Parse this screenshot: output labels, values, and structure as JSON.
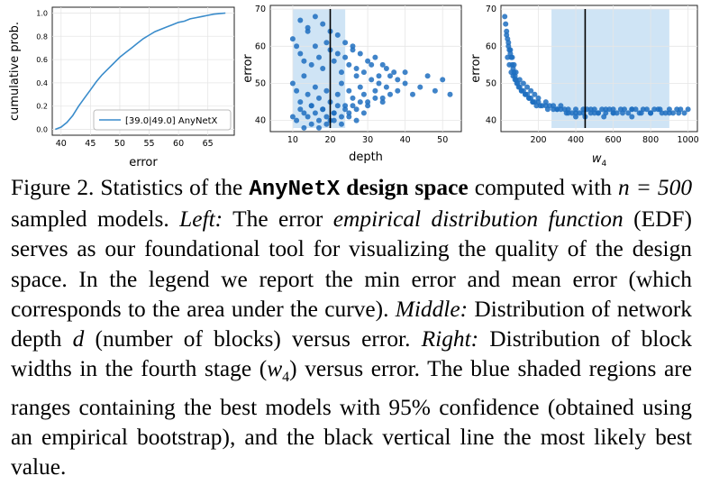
{
  "chart_data": [
    {
      "type": "line",
      "xlabel": "error",
      "ylabel": "cumulative prob.",
      "xlim": [
        38.5,
        69.5
      ],
      "ylim": [
        -0.05,
        1.05
      ],
      "xticks": [
        "40",
        "45",
        "50",
        "55",
        "60",
        "65"
      ],
      "yticks": [
        "0.0",
        "0.2",
        "0.4",
        "0.6",
        "0.8",
        "1.0"
      ],
      "legend": "[39.0|49.0] AnyNetX",
      "legend_position": "lower-right",
      "grid": true,
      "series": [
        {
          "name": "[39.0|49.0] AnyNetX",
          "color": "#3a8ccb",
          "x": [
            39.0,
            40.0,
            41.0,
            42.0,
            43.0,
            44.0,
            45.0,
            46.0,
            47.0,
            48.0,
            49.0,
            50.0,
            51.0,
            52.0,
            53.0,
            54.0,
            55.0,
            56.0,
            57.0,
            58.0,
            59.0,
            60.0,
            61.0,
            62.0,
            63.0,
            64.0,
            65.0,
            66.0,
            67.0,
            68.0
          ],
          "y": [
            0.0,
            0.02,
            0.06,
            0.12,
            0.2,
            0.27,
            0.34,
            0.41,
            0.47,
            0.52,
            0.57,
            0.62,
            0.66,
            0.7,
            0.74,
            0.78,
            0.81,
            0.84,
            0.86,
            0.88,
            0.9,
            0.92,
            0.93,
            0.95,
            0.96,
            0.97,
            0.98,
            0.99,
            0.995,
            1.0
          ]
        }
      ]
    },
    {
      "type": "scatter",
      "xlabel": "depth",
      "ylabel": "error",
      "xlim": [
        4,
        55
      ],
      "ylim": [
        37,
        71
      ],
      "xticks": [
        "10",
        "20",
        "30",
        "40",
        "50"
      ],
      "yticks": [
        "40",
        "50",
        "60",
        "70"
      ],
      "grid": true,
      "shaded_range": [
        10,
        24
      ],
      "best_value": 20,
      "color": "#1f6fbf",
      "shade_color": "#cfe4f5",
      "points": {
        "x": [
          10,
          11,
          12,
          13,
          14,
          15,
          16,
          17,
          18,
          19,
          20,
          21,
          22,
          23,
          24,
          25,
          26,
          27,
          28,
          29,
          30,
          31,
          32,
          33,
          34,
          35,
          36,
          37,
          38,
          40,
          42,
          44,
          46,
          48,
          50,
          52,
          10,
          11,
          12,
          13,
          14,
          15,
          16,
          17,
          18,
          19,
          20,
          21,
          22,
          23,
          24,
          25,
          26,
          27,
          28,
          29,
          30,
          31,
          32,
          33,
          34,
          35,
          36,
          38,
          40,
          10,
          11,
          12,
          13,
          14,
          15,
          16,
          17,
          18,
          19,
          20,
          21,
          22,
          23,
          24,
          25,
          26,
          27,
          28,
          30,
          32,
          34,
          12,
          14,
          16,
          18,
          20,
          22,
          24,
          26,
          13,
          15,
          17,
          19,
          21,
          23,
          25,
          27,
          29
        ],
        "y": [
          50,
          48,
          45,
          52,
          47,
          44,
          49,
          46,
          43,
          48,
          45,
          42,
          47,
          50,
          44,
          48,
          46,
          52,
          49,
          47,
          45,
          51,
          48,
          50,
          46,
          49,
          47,
          53,
          48,
          50,
          47,
          49,
          52,
          48,
          51,
          47,
          62,
          60,
          58,
          56,
          64,
          55,
          60,
          57,
          54,
          61,
          59,
          56,
          58,
          53,
          57,
          55,
          59,
          54,
          58,
          53,
          56,
          55,
          57,
          52,
          55,
          54,
          52,
          51,
          53,
          41,
          40,
          43,
          42,
          41,
          44,
          42,
          40,
          43,
          41,
          40,
          42,
          44,
          41,
          43,
          42,
          44,
          43,
          45,
          44,
          46,
          45,
          67,
          65,
          68,
          66,
          64,
          63,
          61,
          60,
          38,
          39,
          38,
          39,
          40,
          39,
          41,
          40,
          42
        ]
      }
    },
    {
      "type": "scatter",
      "xlabel": "w4",
      "ylabel": "error",
      "xlim": [
        0,
        1050
      ],
      "ylim": [
        37,
        71
      ],
      "xticks": [
        "200",
        "400",
        "600",
        "800",
        "1000"
      ],
      "yticks": [
        "40",
        "50",
        "60",
        "70"
      ],
      "grid": true,
      "shaded_range": [
        270,
        900
      ],
      "best_value": 450,
      "color": "#1f6fbf",
      "shade_color": "#cfe4f5",
      "points": {
        "x": [
          20,
          25,
          30,
          35,
          40,
          45,
          50,
          55,
          60,
          65,
          70,
          75,
          80,
          90,
          100,
          110,
          120,
          130,
          140,
          150,
          160,
          170,
          180,
          200,
          220,
          240,
          260,
          280,
          300,
          320,
          340,
          360,
          380,
          400,
          420,
          440,
          460,
          480,
          500,
          520,
          540,
          560,
          580,
          600,
          620,
          640,
          660,
          680,
          700,
          720,
          740,
          760,
          780,
          800,
          820,
          840,
          860,
          880,
          900,
          920,
          940,
          960,
          980,
          1000,
          30,
          40,
          50,
          60,
          70,
          80,
          100,
          120,
          140,
          160,
          180,
          200,
          240,
          280,
          320,
          360,
          400,
          440,
          480,
          520,
          560,
          600,
          650,
          700,
          750,
          800,
          850,
          900,
          950,
          35,
          45,
          55,
          65,
          75,
          85,
          95,
          110,
          130,
          150,
          170,
          190,
          210,
          250,
          300,
          350,
          400,
          450,
          500,
          550,
          600,
          700,
          800
        ],
        "y": [
          68,
          66,
          64,
          62,
          60,
          59,
          58,
          57,
          55,
          54,
          53,
          52,
          51,
          50,
          49,
          48,
          48,
          47,
          47,
          46,
          46,
          45,
          45,
          45,
          44,
          44,
          44,
          43,
          43,
          43,
          43,
          42,
          42,
          42,
          42,
          42,
          43,
          42,
          43,
          42,
          43,
          42,
          43,
          43,
          42,
          43,
          43,
          42,
          43,
          43,
          42,
          43,
          43,
          42,
          43,
          43,
          42,
          42,
          43,
          42,
          43,
          43,
          42,
          43,
          63,
          61,
          59,
          57,
          55,
          53,
          51,
          50,
          49,
          48,
          47,
          46,
          45,
          44,
          44,
          43,
          43,
          43,
          43,
          42,
          43,
          42,
          42,
          43,
          42,
          42,
          43,
          42,
          42,
          57,
          55,
          53,
          52,
          51,
          50,
          49,
          48,
          47,
          46,
          45,
          44,
          44,
          43,
          43,
          42,
          41,
          41,
          42,
          41,
          42,
          41,
          42
        ]
      }
    }
  ],
  "caption": {
    "label": "Figure 2. Statistics of the ",
    "anynetx": "AnyNetX",
    "design_space": " design space",
    "t1": " computed with ",
    "n_eq": "n = 500",
    "t2": " sampled models. ",
    "left": "Left:",
    "t3": " The error ",
    "edf_italic": "empirical distribution function",
    "t4": " (EDF) serves as our foundational tool for visualizing the quality of the design space. In the legend we report the min error and mean error (which corresponds to the area under the curve). ",
    "middle": "Middle:",
    "t5": " Distribution of network depth ",
    "d": "d",
    "t6": " (number of blocks) versus error. ",
    "right": "Right:",
    "t7": " Distribution of block widths in the fourth stage (",
    "w4": "w",
    "w4_sub": "4",
    "t8": ") versus error. The blue shaded regions are ranges containing the best models with 95% confidence (obtained using an empirical bootstrap), and the black vertical line the most likely best value."
  }
}
